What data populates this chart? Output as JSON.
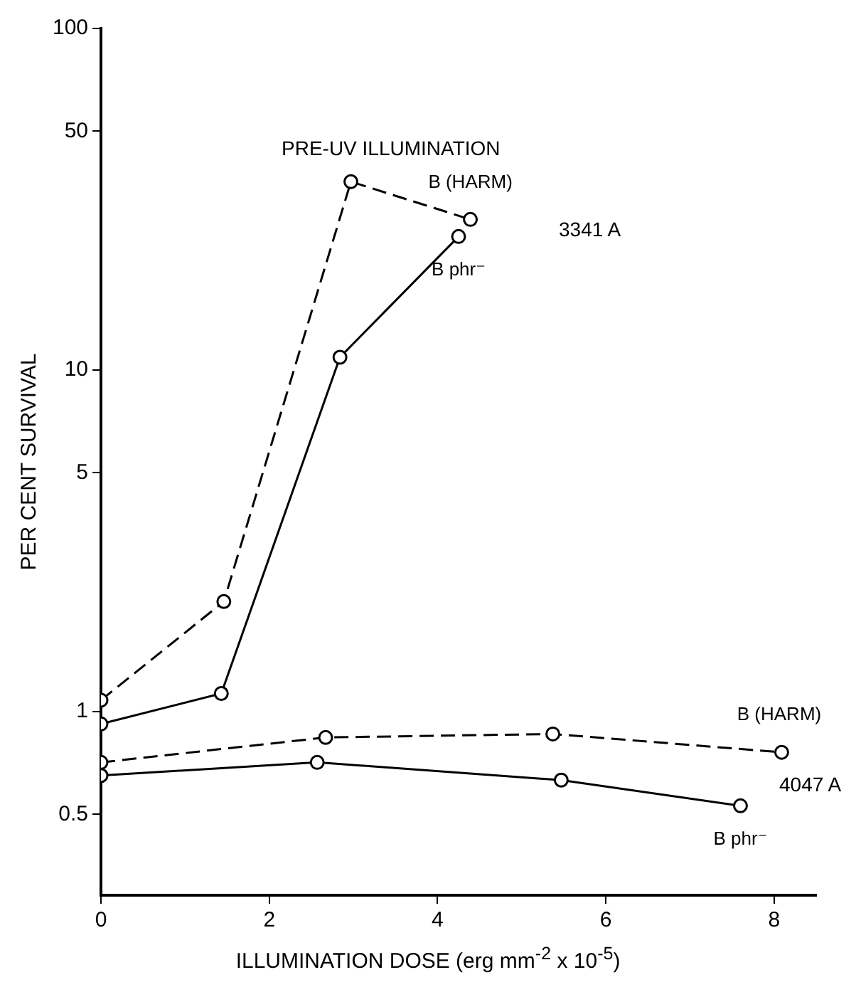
{
  "chart_data": {
    "type": "line",
    "xlabel": "ILLUMINATION DOSE (erg mm$^{-2}$ x 10$^{-5}$)",
    "ylabel": "PER CENT SURVIVAL",
    "log": "y",
    "grid": false,
    "legend": false,
    "marker": "circle",
    "xlim": [
      0,
      8.5
    ],
    "xticks": [
      0,
      2,
      4,
      6,
      8
    ],
    "ylim": [
      0.29,
      100
    ],
    "yticks": [
      0.5,
      1,
      5,
      10,
      50,
      100
    ],
    "series": [
      {
        "name": "B (HARM)",
        "color": "#000000",
        "line_style": "dashed",
        "x": [
          0,
          1.46,
          2.97,
          4.39
        ],
        "values": [
          1.08,
          2.1,
          35.6,
          27.6
        ]
      },
      {
        "name": "B phr⁻",
        "color": "#000000",
        "line_style": "solid",
        "x": [
          0,
          1.43,
          2.84,
          4.25
        ],
        "values": [
          0.92,
          1.13,
          10.9,
          24.6
        ]
      },
      {
        "name": "B (HARM)",
        "color": "#000000",
        "line_style": "dashed",
        "x": [
          0,
          2.67,
          5.37,
          8.09
        ],
        "values": [
          0.71,
          0.84,
          0.86,
          0.76
        ]
      },
      {
        "name": "B phr⁻",
        "color": "#000000",
        "line_style": "solid",
        "x": [
          0,
          2.57,
          5.47,
          7.6
        ],
        "values": [
          0.65,
          0.71,
          0.63,
          0.53
        ]
      }
    ],
    "annotations": [
      "PRE-UV ILLUMINATION",
      "3341 A",
      "4047 A"
    ]
  }
}
